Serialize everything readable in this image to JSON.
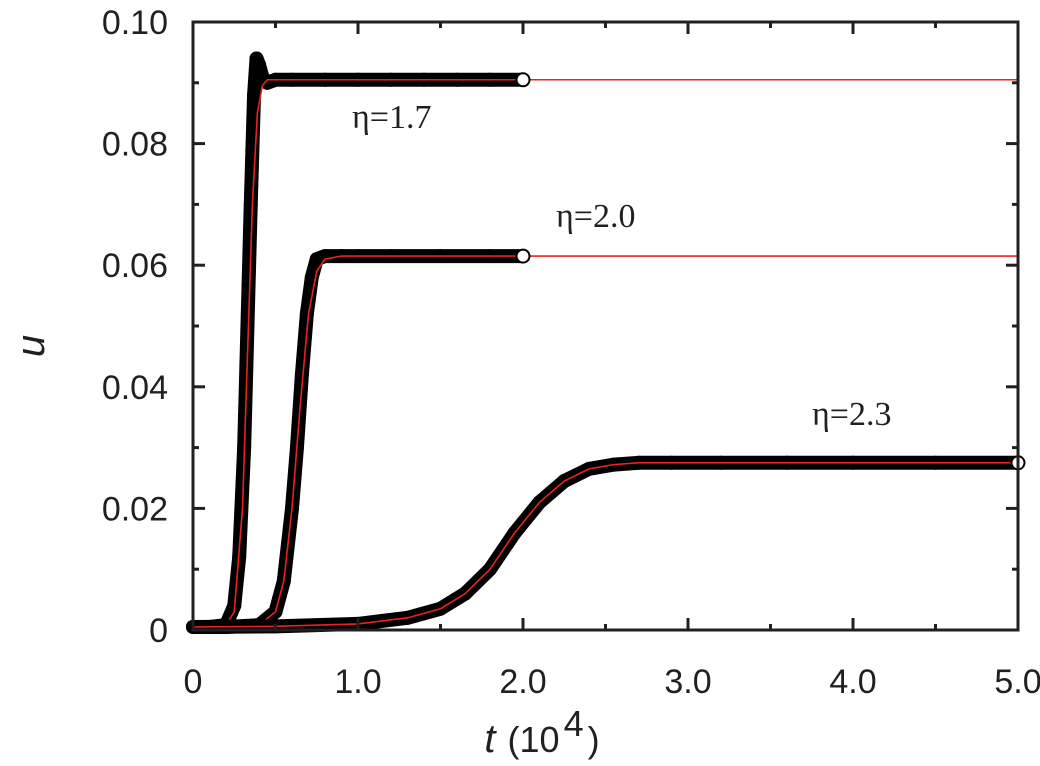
{
  "chart_data": {
    "type": "line",
    "xlabel_var": "t",
    "xlabel_unit": "(10",
    "xlabel_exp": "4",
    "xlabel_close": ")",
    "ylabel": "u",
    "xlim": [
      0,
      5.0
    ],
    "ylim": [
      0,
      0.1
    ],
    "x_ticks": [
      0,
      1.0,
      2.0,
      3.0,
      4.0,
      5.0
    ],
    "x_tick_labels": [
      "0",
      "1.0",
      "2.0",
      "3.0",
      "4.0",
      "5.0"
    ],
    "y_ticks": [
      0,
      0.02,
      0.04,
      0.06,
      0.08,
      0.1
    ],
    "y_tick_labels": [
      "0",
      "0.02",
      "0.04",
      "0.06",
      "0.08",
      "0.10"
    ],
    "grid": false,
    "colors": {
      "markers": "#000000",
      "fit": "#e8231f",
      "axis": "#231f20"
    },
    "series": [
      {
        "annotation": "η=1.7",
        "markers_x": [
          0,
          0.1,
          0.2,
          0.25,
          0.28,
          0.31,
          0.33,
          0.35,
          0.37,
          0.385,
          0.4,
          0.42,
          0.45,
          0.5,
          0.6,
          0.8,
          1.0,
          1.2,
          1.4,
          1.6,
          1.8,
          2.0
        ],
        "markers_y": [
          0.0005,
          0.0005,
          0.0008,
          0.004,
          0.012,
          0.03,
          0.05,
          0.07,
          0.088,
          0.094,
          0.093,
          0.091,
          0.09,
          0.0905,
          0.0905,
          0.0905,
          0.0905,
          0.0905,
          0.0905,
          0.0905,
          0.0905,
          0.0905
        ],
        "fit_x": [
          0,
          0.2,
          0.25,
          0.3,
          0.33,
          0.36,
          0.39,
          0.42,
          0.45,
          0.5,
          1.0,
          2.0,
          3.0,
          4.0,
          5.0
        ],
        "fit_y": [
          0.0005,
          0.0008,
          0.003,
          0.02,
          0.045,
          0.07,
          0.085,
          0.0895,
          0.0905,
          0.0905,
          0.0905,
          0.0905,
          0.0905,
          0.0905,
          0.0905
        ],
        "end_marker": [
          2.0,
          0.0905
        ]
      },
      {
        "annotation": "η=2.0",
        "markers_x": [
          0,
          0.2,
          0.4,
          0.5,
          0.55,
          0.6,
          0.63,
          0.66,
          0.69,
          0.72,
          0.75,
          0.8,
          0.9,
          1.0,
          1.2,
          1.5,
          1.8,
          2.0
        ],
        "markers_y": [
          0.0005,
          0.0005,
          0.0008,
          0.003,
          0.008,
          0.02,
          0.03,
          0.042,
          0.052,
          0.058,
          0.061,
          0.0615,
          0.0615,
          0.0615,
          0.0615,
          0.0615,
          0.0615,
          0.0615
        ],
        "fit_x": [
          0,
          0.4,
          0.5,
          0.55,
          0.6,
          0.65,
          0.7,
          0.75,
          0.8,
          0.9,
          1.0,
          2.0,
          3.0,
          4.0,
          5.0
        ],
        "fit_y": [
          0.0005,
          0.0008,
          0.003,
          0.008,
          0.02,
          0.037,
          0.052,
          0.059,
          0.061,
          0.0615,
          0.0615,
          0.0615,
          0.0615,
          0.0615,
          0.0615
        ],
        "end_marker": [
          2.0,
          0.0615
        ]
      },
      {
        "annotation": "η=2.3",
        "markers_x": [
          0,
          0.5,
          1.0,
          1.3,
          1.5,
          1.65,
          1.8,
          1.95,
          2.1,
          2.25,
          2.4,
          2.55,
          2.7,
          2.9,
          3.2,
          3.6,
          4.0,
          4.5,
          5.0
        ],
        "markers_y": [
          0.0005,
          0.0006,
          0.001,
          0.002,
          0.0035,
          0.006,
          0.01,
          0.016,
          0.021,
          0.0245,
          0.0265,
          0.0272,
          0.0275,
          0.0275,
          0.0275,
          0.0275,
          0.0275,
          0.0275,
          0.0275
        ],
        "fit_x": [
          0,
          0.5,
          1.0,
          1.3,
          1.5,
          1.65,
          1.8,
          1.95,
          2.1,
          2.25,
          2.4,
          2.55,
          2.7,
          2.9,
          3.2,
          3.6,
          4.0,
          4.5,
          5.0
        ],
        "fit_y": [
          0.0005,
          0.0006,
          0.001,
          0.002,
          0.0035,
          0.006,
          0.01,
          0.016,
          0.021,
          0.0245,
          0.0265,
          0.0272,
          0.0275,
          0.0275,
          0.0275,
          0.0275,
          0.0275,
          0.0275,
          0.0275
        ],
        "end_marker": [
          5.0,
          0.0275
        ]
      }
    ]
  }
}
